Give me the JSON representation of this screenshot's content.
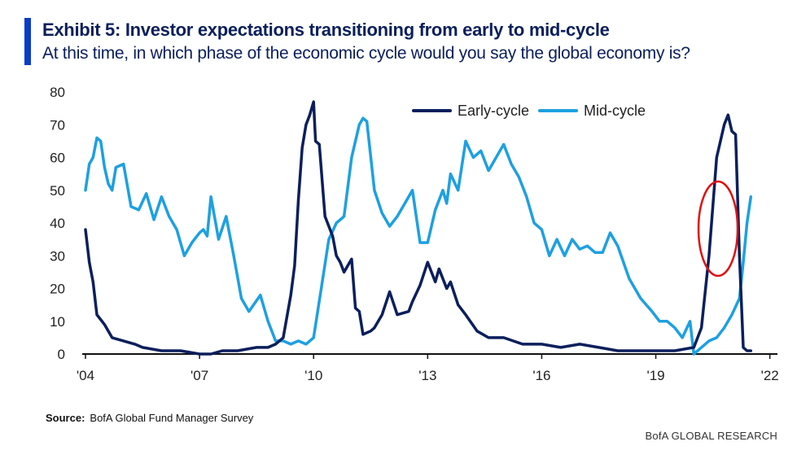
{
  "header": {
    "title": "Exhibit 5: Investor expectations transitioning from early to mid-cycle",
    "subtitle": "At this time, in which phase of the economic cycle would you say the global economy is?"
  },
  "footer": {
    "source_label": "Source:",
    "source_text": "BofA Global Fund Manager Survey",
    "brand": "BofA GLOBAL RESEARCH"
  },
  "colors": {
    "accent": "#0a3cc8",
    "early": "#0b1f5c",
    "mid": "#1ea0e0",
    "circle": "#e01010"
  },
  "chart_data": {
    "type": "line",
    "title": "Exhibit 5: Investor expectations transitioning from early to mid-cycle",
    "subtitle": "At this time, in which phase of the economic cycle would you say the global economy is?",
    "xlabel": "",
    "ylabel": "",
    "xlim": [
      2004,
      2022.2
    ],
    "ylim": [
      0,
      80
    ],
    "yticks": [
      0,
      10,
      20,
      30,
      40,
      50,
      60,
      70,
      80
    ],
    "xticks": [
      {
        "value": 2004,
        "label": "'04"
      },
      {
        "value": 2007,
        "label": "'07"
      },
      {
        "value": 2010,
        "label": "'10"
      },
      {
        "value": 2013,
        "label": "'13"
      },
      {
        "value": 2016,
        "label": "'16"
      },
      {
        "value": 2019,
        "label": "'19"
      },
      {
        "value": 2022,
        "label": "'22"
      }
    ],
    "legend": "top-right",
    "annotation": "red circle around latest readings (2021)",
    "series": [
      {
        "name": "Early-cycle",
        "color": "#0b1f5c",
        "x": [
          2004.0,
          2004.1,
          2004.2,
          2004.3,
          2004.5,
          2004.7,
          2005.0,
          2005.3,
          2005.5,
          2006.0,
          2006.5,
          2007.0,
          2007.3,
          2007.6,
          2008.0,
          2008.5,
          2008.8,
          2009.0,
          2009.2,
          2009.4,
          2009.5,
          2009.6,
          2009.7,
          2009.8,
          2009.9,
          2010.0,
          2010.05,
          2010.15,
          2010.3,
          2010.5,
          2010.6,
          2010.7,
          2010.8,
          2011.0,
          2011.1,
          2011.2,
          2011.3,
          2011.5,
          2011.6,
          2011.8,
          2012.0,
          2012.2,
          2012.5,
          2012.6,
          2012.8,
          2013.0,
          2013.2,
          2013.3,
          2013.5,
          2013.6,
          2013.8,
          2014.0,
          2014.3,
          2014.6,
          2015.0,
          2015.5,
          2016.0,
          2016.5,
          2017.0,
          2017.5,
          2018.0,
          2018.5,
          2019.0,
          2019.5,
          2020.0,
          2020.2,
          2020.4,
          2020.6,
          2020.8,
          2020.9,
          2021.0,
          2021.1,
          2021.2,
          2021.3,
          2021.4,
          2021.5
        ],
        "y": [
          38,
          28,
          22,
          12,
          9,
          5,
          4,
          3,
          2,
          1,
          1,
          0,
          0,
          1,
          1,
          2,
          2,
          3,
          5,
          18,
          27,
          47,
          63,
          70,
          73,
          77,
          65,
          64,
          42,
          36,
          30,
          28,
          25,
          29,
          14,
          13,
          6,
          7,
          8,
          12,
          19,
          12,
          13,
          16,
          21,
          28,
          22,
          26,
          20,
          22,
          15,
          12,
          7,
          5,
          5,
          3,
          3,
          2,
          3,
          2,
          1,
          1,
          1,
          1,
          2,
          8,
          30,
          60,
          70,
          73,
          68,
          67,
          30,
          2,
          1,
          1
        ]
      },
      {
        "name": "Mid-cycle",
        "color": "#1ea0e0",
        "x": [
          2004.0,
          2004.1,
          2004.2,
          2004.3,
          2004.4,
          2004.5,
          2004.6,
          2004.7,
          2004.8,
          2005.0,
          2005.2,
          2005.4,
          2005.6,
          2005.8,
          2006.0,
          2006.2,
          2006.4,
          2006.6,
          2006.8,
          2007.0,
          2007.1,
          2007.2,
          2007.3,
          2007.5,
          2007.7,
          2007.9,
          2008.1,
          2008.3,
          2008.6,
          2008.8,
          2009.0,
          2009.2,
          2009.4,
          2009.6,
          2009.8,
          2010.0,
          2010.2,
          2010.4,
          2010.6,
          2010.8,
          2011.0,
          2011.2,
          2011.3,
          2011.4,
          2011.6,
          2011.8,
          2012.0,
          2012.2,
          2012.4,
          2012.6,
          2012.8,
          2013.0,
          2013.2,
          2013.4,
          2013.5,
          2013.6,
          2013.8,
          2014.0,
          2014.2,
          2014.4,
          2014.6,
          2014.8,
          2015.0,
          2015.2,
          2015.4,
          2015.6,
          2015.8,
          2016.0,
          2016.2,
          2016.4,
          2016.6,
          2016.8,
          2017.0,
          2017.2,
          2017.4,
          2017.6,
          2017.8,
          2018.0,
          2018.3,
          2018.6,
          2018.9,
          2019.1,
          2019.3,
          2019.5,
          2019.7,
          2019.9,
          2020.0,
          2020.2,
          2020.4,
          2020.6,
          2020.8,
          2021.0,
          2021.2,
          2021.3,
          2021.4,
          2021.5
        ],
        "y": [
          50,
          58,
          60,
          66,
          65,
          57,
          52,
          50,
          57,
          58,
          45,
          44,
          49,
          41,
          48,
          42,
          38,
          30,
          34,
          37,
          38,
          36,
          48,
          35,
          42,
          30,
          17,
          13,
          18,
          10,
          4,
          4,
          3,
          4,
          3,
          5,
          20,
          35,
          40,
          42,
          60,
          70,
          72,
          71,
          50,
          43,
          39,
          42,
          46,
          50,
          34,
          34,
          44,
          50,
          46,
          55,
          50,
          65,
          60,
          62,
          56,
          60,
          64,
          58,
          54,
          48,
          40,
          38,
          30,
          35,
          30,
          35,
          32,
          33,
          31,
          31,
          37,
          33,
          23,
          17,
          13,
          10,
          10,
          8,
          5,
          10,
          0,
          2,
          4,
          5,
          8,
          12,
          17,
          28,
          40,
          48
        ]
      }
    ]
  }
}
